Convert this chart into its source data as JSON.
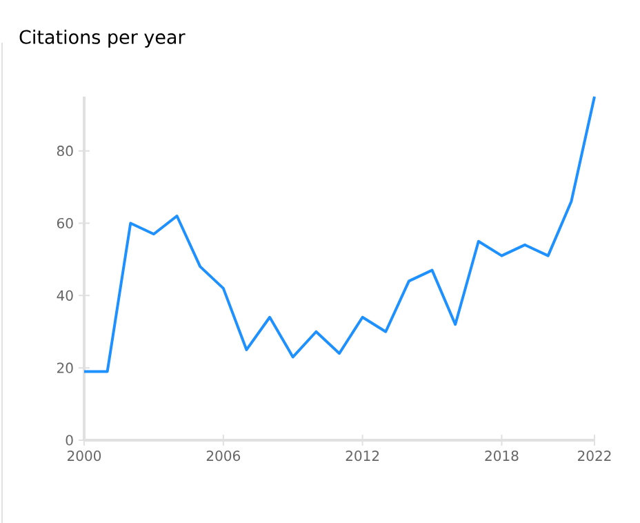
{
  "chart_data": {
    "type": "line",
    "title": "Citations per year",
    "x": [
      2000,
      2001,
      2002,
      2003,
      2004,
      2005,
      2006,
      2007,
      2008,
      2009,
      2010,
      2011,
      2012,
      2013,
      2014,
      2015,
      2016,
      2017,
      2018,
      2019,
      2020,
      2021,
      2022
    ],
    "series": [
      {
        "color": "#1e90ff",
        "values": [
          19,
          19,
          60,
          57,
          62,
          48,
          42,
          25,
          34,
          23,
          30,
          24,
          34,
          30,
          44,
          47,
          32,
          55,
          51,
          54,
          51,
          66,
          95
        ]
      }
    ],
    "xlim": [
      2000,
      2022
    ],
    "ylim": [
      0,
      95
    ],
    "xticks": [
      2000,
      2006,
      2012,
      2018,
      2022
    ],
    "yticks": [
      0,
      20,
      40,
      60,
      80
    ],
    "grid": false,
    "marker": "none",
    "line_style": "solid"
  }
}
